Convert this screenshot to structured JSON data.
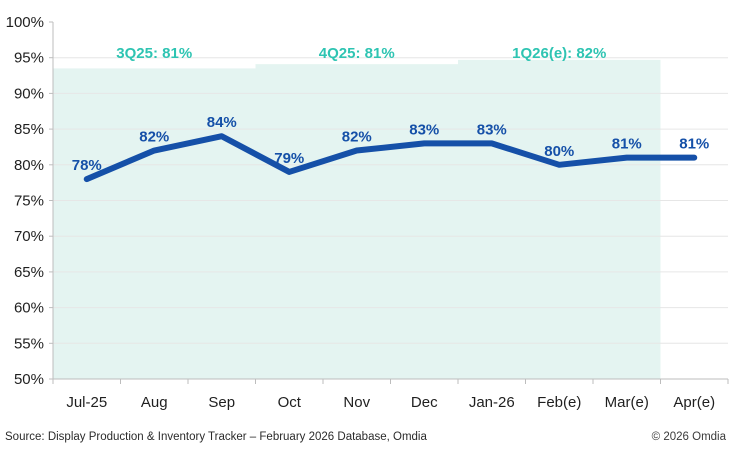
{
  "chart_data": {
    "type": "line",
    "title": "",
    "categories": [
      "Jul-25",
      "Aug",
      "Sep",
      "Oct",
      "Nov",
      "Dec",
      "Jan-26",
      "Feb(e)",
      "Mar(e)",
      "Apr(e)"
    ],
    "values": [
      78,
      82,
      84,
      79,
      82,
      83,
      83,
      80,
      81,
      81
    ],
    "point_labels": [
      "78%",
      "82%",
      "84%",
      "79%",
      "82%",
      "83%",
      "83%",
      "80%",
      "81%",
      "81%"
    ],
    "ylim": [
      50,
      100
    ],
    "ytick_step": 5,
    "ytick_suffix": "%",
    "grid": true,
    "legend": false,
    "quarter_bands": [
      {
        "label": "3Q25",
        "from_index": 0,
        "to_index": 2,
        "top_value": 93.5
      },
      {
        "label": "4Q25",
        "from_index": 3,
        "to_index": 5,
        "top_value": 94.1
      },
      {
        "label": "1Q26",
        "from_index": 6,
        "to_index": 8,
        "top_value": 94.7
      }
    ],
    "annotations": [
      {
        "text": "3Q25: 81%",
        "from_index": 0,
        "to_index": 2
      },
      {
        "text": "4Q25: 81%",
        "from_index": 3,
        "to_index": 5
      },
      {
        "text": "1Q26(e): 82%",
        "from_index": 6,
        "to_index": 8
      }
    ],
    "colors": {
      "line": "#1550a8",
      "point_label": "#1550a8",
      "annotation": "#2ec4b2",
      "band_fill": "#e4f4f1",
      "grid": "#e6e6e6",
      "axis": "#bdbdbd",
      "tick_text": "#1f1f1f"
    }
  },
  "footer": {
    "source": "Source: Display Production & Inventory Tracker – February 2026 Database, Omdia",
    "copyright": "© 2026 Omdia"
  }
}
